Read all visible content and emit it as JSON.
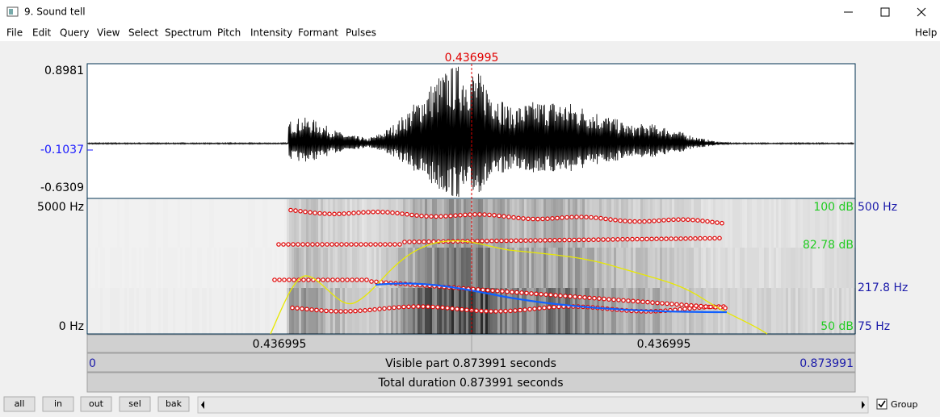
{
  "window": {
    "title": "9. Sound tell"
  },
  "menu": {
    "items": [
      "File",
      "Edit",
      "Query",
      "View",
      "Select",
      "Spectrum",
      "Pitch",
      "Intensity",
      "Formant",
      "Pulses"
    ],
    "help": "Help"
  },
  "cursor": "0.436995",
  "waveform": {
    "labels": [
      "0.8981",
      "-0.1037",
      "-0.6309"
    ]
  },
  "spectrogram": {
    "left_labels": [
      "5000 Hz",
      "0 Hz"
    ],
    "right_labels": [
      "100 dB",
      "500 Hz",
      "82.78 dB",
      "217.8 Hz",
      "50 dB",
      "75 Hz"
    ]
  },
  "time_bar": {
    "left_segment": "0.436995",
    "right_segment": "0.436995",
    "start": "0",
    "visible": "Visible part 0.873991 seconds",
    "end": "0.873991",
    "total": "Total duration 0.873991 seconds"
  },
  "buttons": [
    "all",
    "in",
    "out",
    "sel",
    "bak"
  ],
  "group": "Group"
}
